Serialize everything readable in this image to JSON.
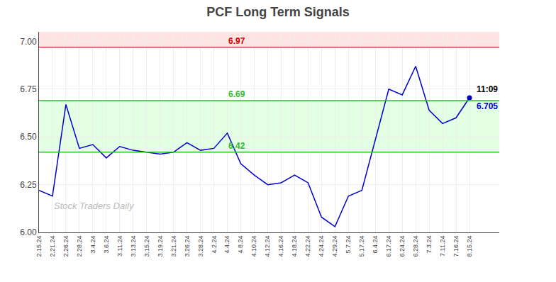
{
  "chart_data": {
    "type": "line",
    "title": "PCF Long Term Signals",
    "categories": [
      "2.15.24",
      "2.21.24",
      "2.26.24",
      "2.28.24",
      "3.4.24",
      "3.6.24",
      "3.11.24",
      "3.13.24",
      "3.15.24",
      "3.19.24",
      "3.21.24",
      "3.26.24",
      "3.28.24",
      "4.2.24",
      "4.4.24",
      "4.8.24",
      "4.10.24",
      "4.12.24",
      "4.16.24",
      "4.18.24",
      "4.22.24",
      "4.24.24",
      "4.29.24",
      "5.7.24",
      "5.17.24",
      "6.4.24",
      "6.17.24",
      "6.24.24",
      "6.28.24",
      "7.3.24",
      "7.11.24",
      "7.16.24",
      "8.15.24"
    ],
    "values": [
      6.22,
      6.19,
      6.67,
      6.44,
      6.46,
      6.39,
      6.45,
      6.43,
      6.42,
      6.41,
      6.42,
      6.47,
      6.43,
      6.44,
      6.52,
      6.36,
      6.3,
      6.25,
      6.26,
      6.3,
      6.26,
      6.08,
      6.03,
      6.19,
      6.22,
      6.48,
      6.75,
      6.72,
      6.87,
      6.64,
      6.57,
      6.6,
      6.705
    ],
    "color": "#0000cc",
    "ylim": [
      6.0,
      7.05
    ],
    "yticks": [
      {
        "value": 6.0,
        "label": "6.00"
      },
      6.25,
      {
        "value": 6.5,
        "label": "6.50"
      },
      6.75,
      {
        "value": 7.0,
        "label": "7.00"
      }
    ],
    "grid": true,
    "reference_lines": [
      {
        "value": 6.97,
        "color": "#cc0000"
      },
      {
        "value": 6.69,
        "color": "#33bb33"
      },
      {
        "value": 6.42,
        "color": "#33bb33"
      }
    ],
    "bands": [
      {
        "from": 6.97,
        "to": 7.05,
        "color": "#ffcccc"
      },
      {
        "from": 6.42,
        "to": 6.69,
        "color": "#ccffcc"
      }
    ],
    "last_point": {
      "label": "11:09",
      "value": 6.705,
      "color": "#0000cc"
    },
    "watermark": "Stock Traders Daily"
  }
}
